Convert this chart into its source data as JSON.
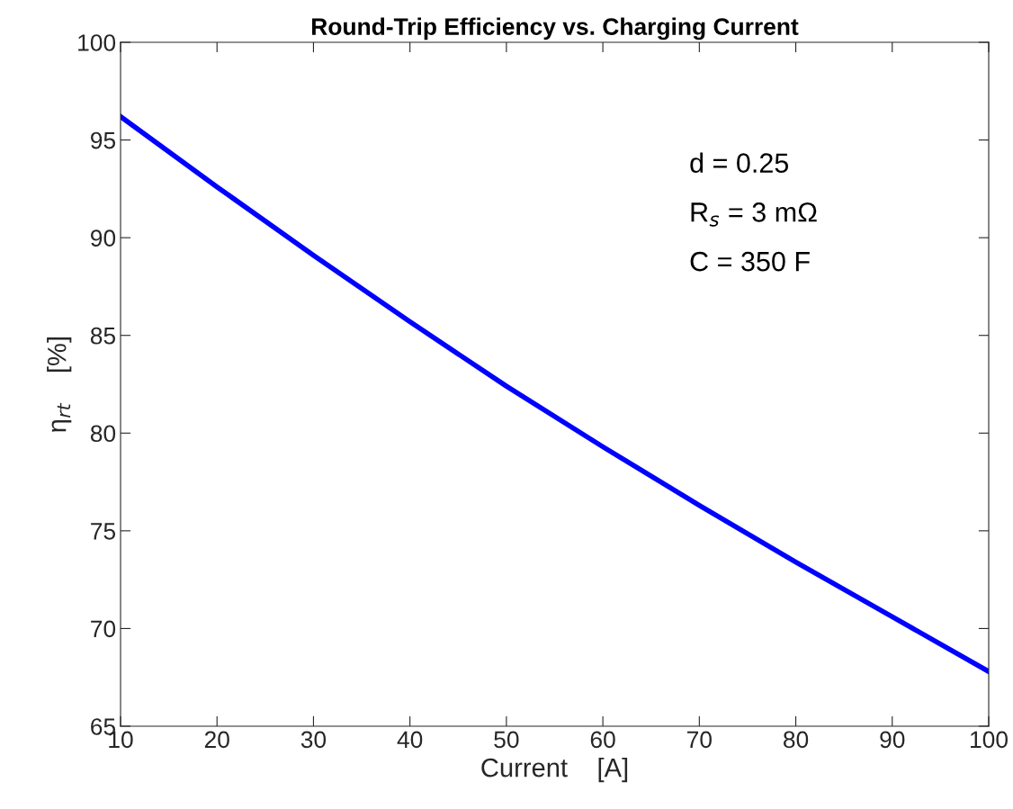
{
  "chart_data": {
    "type": "line",
    "title": "Round-Trip Efficiency vs. Charging Current",
    "xlabel": "Current    [A]",
    "ylabel": "η$_{rt}$    [%]",
    "x": [
      10,
      20,
      30,
      40,
      50,
      60,
      70,
      80,
      90,
      100
    ],
    "series": [
      {
        "color": "#0000ff",
        "values": [
          96.2,
          92.6,
          89.1,
          85.7,
          82.4,
          79.3,
          76.3,
          73.4,
          70.6,
          67.8
        ]
      }
    ],
    "xlim": [
      10,
      100
    ],
    "xticks": [
      10,
      20,
      30,
      40,
      50,
      60,
      70,
      80,
      90,
      100
    ],
    "ylim": [
      65,
      100
    ],
    "yticks": [
      65,
      70,
      75,
      80,
      85,
      90,
      95,
      100
    ],
    "annotations": [
      "d = 0.25",
      "R$_{s}$ = 3 mΩ",
      "C = 350 F"
    ],
    "grid": false,
    "legend": false,
    "line_style": "solid",
    "marker": "none"
  }
}
